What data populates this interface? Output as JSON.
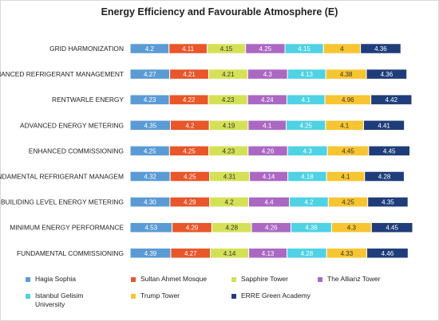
{
  "chart_data": {
    "type": "bar",
    "orientation": "horizontal",
    "stacked": true,
    "title": "Energy Efficiency and Favourable Atmosphere (E)",
    "categories": [
      "GRID HARMONIZATION",
      "ENHANCED REFRIGERANT MANAGEMENT",
      "RENTWARLE ENERGY",
      "ADVANCED ENERGY METERING",
      "ENHANCED COMMISSIONING",
      "FUNDAMENTAL REFRIGERANT MANAGEM",
      "BUILIDING LEVEL ENERGY METERING",
      "MINIMUM ENERGY PERFORMANCE",
      "FUNDAMENTAL COMMISSIONING"
    ],
    "series": [
      {
        "name": "Hagia Sophia",
        "color": "#5b9bd5",
        "values": [
          4.2,
          4.27,
          4.23,
          4.35,
          4.25,
          4.32,
          4.3,
          4.53,
          4.39
        ],
        "labels": [
          "4.2",
          "4.27",
          "4.23",
          "4.35",
          "4.25",
          "4.32",
          "4.30",
          "4.53",
          "4.39"
        ]
      },
      {
        "name": "Sultan Ahmet Mosque",
        "color": "#e8562a",
        "values": [
          4.11,
          4.21,
          4.22,
          4.2,
          4.25,
          4.25,
          4.29,
          4.29,
          4.27
        ],
        "labels": [
          "4.11",
          "4.21",
          "4.22",
          "4.2",
          "4.25",
          "4.25",
          "4.29",
          "4.29",
          "4.27"
        ]
      },
      {
        "name": "Sapphire Tower",
        "color": "#d4e157",
        "values": [
          4.15,
          4.21,
          4.23,
          4.19,
          4.23,
          4.31,
          4.2,
          4.28,
          4.14
        ],
        "labels": [
          "4.15",
          "4.21",
          "4.23",
          "4.19",
          "4.23",
          "4.31",
          "4.2",
          "4.28",
          "4.14"
        ]
      },
      {
        "name": "The Allianz Tower",
        "color": "#ab68c2",
        "values": [
          4.25,
          4.3,
          4.24,
          4.1,
          4.26,
          4.14,
          4.4,
          4.26,
          4.13
        ],
        "labels": [
          "4.25",
          "4.3",
          "4.24",
          "4.1",
          "4.26",
          "4.14",
          "4.4",
          "4.26",
          "4.13"
        ]
      },
      {
        "name": "Istanbul Gelisim University",
        "color": "#4fd2e3",
        "values": [
          4.15,
          4.13,
          4.1,
          4.25,
          4.3,
          4.18,
          4.2,
          4.38,
          4.28
        ],
        "labels": [
          "4.15",
          "4.13",
          "4.1",
          "4.25",
          "4.3",
          "4.18",
          "4.2",
          "4.38",
          "4.28"
        ]
      },
      {
        "name": "Trump Tower",
        "color": "#f7c531",
        "values": [
          4,
          4.38,
          4.96,
          4.1,
          4.45,
          4.1,
          4.25,
          4.3,
          4.33
        ],
        "labels": [
          "4",
          "4.38",
          "4.96",
          "4.1",
          "4.45",
          "4.1",
          "4.25",
          "4.3",
          "4.33"
        ]
      },
      {
        "name": "ERRE Green Academy",
        "color": "#1f3d7a",
        "values": [
          4.36,
          4.36,
          4.42,
          4.41,
          4.45,
          4.28,
          4.35,
          4.45,
          4.46
        ],
        "labels": [
          "4.36",
          "4.36",
          "4.42",
          "4.41",
          "4.45",
          "4.28",
          "4.35",
          "4.45",
          "4.46"
        ]
      }
    ],
    "legend_position": "bottom",
    "grid": false
  }
}
